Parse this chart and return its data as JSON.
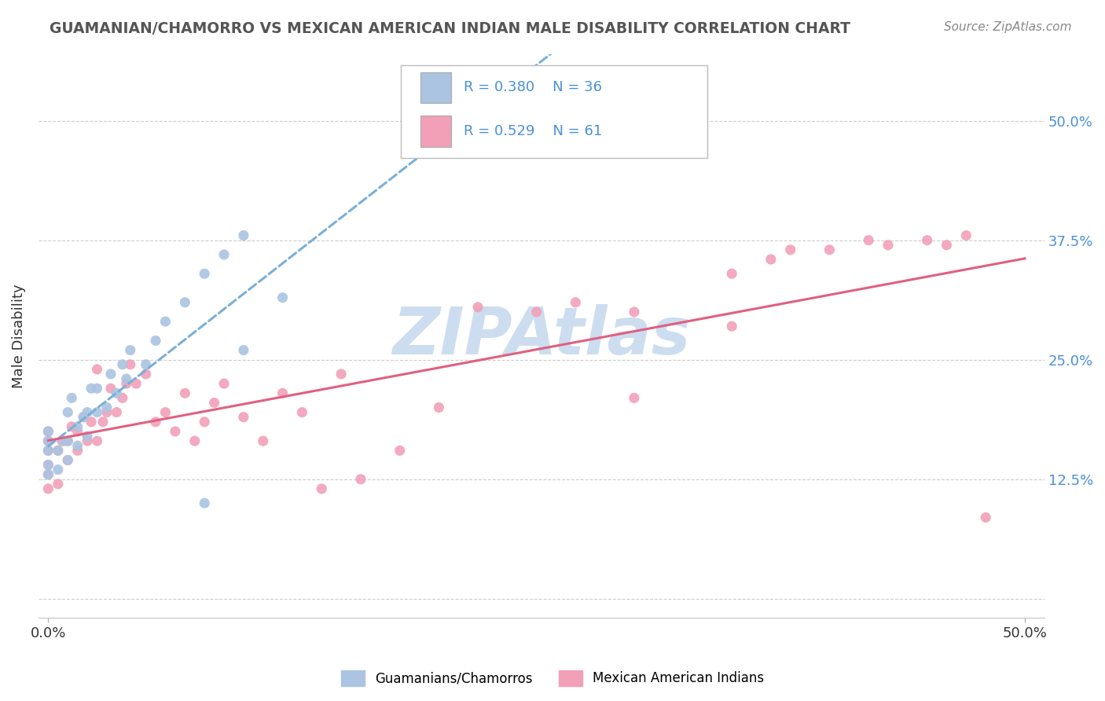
{
  "title": "GUAMANIAN/CHAMORRO VS MEXICAN AMERICAN INDIAN MALE DISABILITY CORRELATION CHART",
  "source": "Source: ZipAtlas.com",
  "ylabel": "Male Disability",
  "xlim": [
    0.0,
    0.5
  ],
  "ylim": [
    0.0,
    0.55
  ],
  "ytick_vals": [
    0.0,
    0.125,
    0.25,
    0.375,
    0.5
  ],
  "ytick_labels": [
    "12.5%",
    "25.0%",
    "37.5%",
    "50.0%"
  ],
  "legend_R1": "R = 0.380",
  "legend_N1": "N = 36",
  "legend_R2": "R = 0.529",
  "legend_N2": "N = 61",
  "color_blue": "#aac4e2",
  "color_pink": "#f2a0b8",
  "line_blue": "#7ab0d8",
  "line_pink": "#e06080",
  "watermark_color": "#ccddf0",
  "background_color": "#ffffff",
  "guam_x": [
    0.0,
    0.0,
    0.0,
    0.0,
    0.0,
    0.005,
    0.005,
    0.008,
    0.01,
    0.01,
    0.01,
    0.012,
    0.015,
    0.015,
    0.018,
    0.02,
    0.02,
    0.022,
    0.025,
    0.025,
    0.03,
    0.032,
    0.035,
    0.038,
    0.04,
    0.042,
    0.05,
    0.055,
    0.06,
    0.07,
    0.08,
    0.09,
    0.1,
    0.12,
    0.1,
    0.08
  ],
  "guam_y": [
    0.13,
    0.14,
    0.155,
    0.165,
    0.175,
    0.135,
    0.155,
    0.165,
    0.145,
    0.165,
    0.195,
    0.21,
    0.16,
    0.18,
    0.19,
    0.17,
    0.195,
    0.22,
    0.195,
    0.22,
    0.2,
    0.235,
    0.215,
    0.245,
    0.23,
    0.26,
    0.245,
    0.27,
    0.29,
    0.31,
    0.34,
    0.36,
    0.38,
    0.315,
    0.26,
    0.1
  ],
  "mex_x": [
    0.0,
    0.0,
    0.0,
    0.0,
    0.0,
    0.0,
    0.005,
    0.005,
    0.007,
    0.01,
    0.01,
    0.012,
    0.015,
    0.015,
    0.018,
    0.02,
    0.022,
    0.025,
    0.025,
    0.028,
    0.03,
    0.032,
    0.035,
    0.038,
    0.04,
    0.042,
    0.045,
    0.05,
    0.055,
    0.06,
    0.065,
    0.07,
    0.075,
    0.08,
    0.085,
    0.09,
    0.1,
    0.11,
    0.12,
    0.13,
    0.14,
    0.15,
    0.16,
    0.18,
    0.2,
    0.22,
    0.25,
    0.27,
    0.3,
    0.35,
    0.37,
    0.4,
    0.43,
    0.45,
    0.47,
    0.3,
    0.35,
    0.38,
    0.42,
    0.46,
    0.48
  ],
  "mex_y": [
    0.115,
    0.13,
    0.14,
    0.155,
    0.165,
    0.175,
    0.12,
    0.155,
    0.165,
    0.145,
    0.165,
    0.18,
    0.155,
    0.175,
    0.19,
    0.165,
    0.185,
    0.165,
    0.24,
    0.185,
    0.195,
    0.22,
    0.195,
    0.21,
    0.225,
    0.245,
    0.225,
    0.235,
    0.185,
    0.195,
    0.175,
    0.215,
    0.165,
    0.185,
    0.205,
    0.225,
    0.19,
    0.165,
    0.215,
    0.195,
    0.115,
    0.235,
    0.125,
    0.155,
    0.2,
    0.305,
    0.3,
    0.31,
    0.3,
    0.34,
    0.355,
    0.365,
    0.37,
    0.375,
    0.38,
    0.21,
    0.285,
    0.365,
    0.375,
    0.37,
    0.085
  ]
}
